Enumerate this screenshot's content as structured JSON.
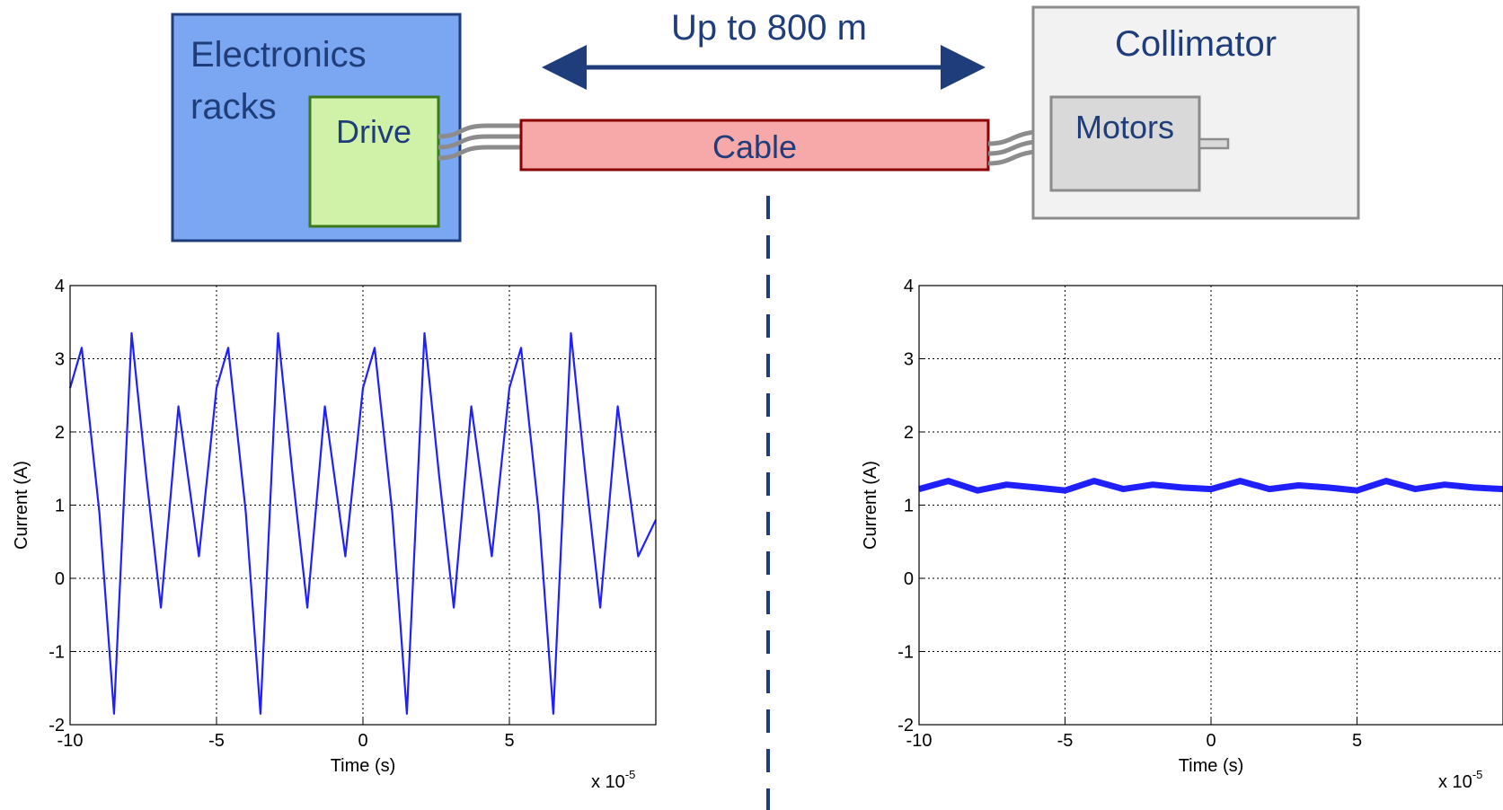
{
  "diagram": {
    "electronics_label_line1": "Electronics",
    "electronics_label_line2": "racks",
    "drive_label": "Drive",
    "cable_label": "Cable",
    "distance_label": "Up to 800 m",
    "collimator_label": "Collimator",
    "motors_label": "Motors",
    "colors": {
      "electronics_fill": "#7aa6f2",
      "electronics_border": "#1f3d7a",
      "drive_fill": "#cff2a8",
      "drive_border": "#3b7a1a",
      "cable_fill": "#f7a8a8",
      "cable_border": "#8b0000",
      "collimator_fill": "#f2f2f2",
      "motors_fill": "#d9d9d9",
      "gray_border": "#8c8c8c",
      "arrow": "#1f3d7a",
      "plot_line": "#1f1fff"
    }
  },
  "chart_data": [
    {
      "type": "line",
      "xlabel": "Time (s)",
      "ylabel": "Current (A)",
      "x_exponent_label": "x 10",
      "x_exponent": "-5",
      "xlim": [
        -10,
        10
      ],
      "ylim": [
        -2,
        4
      ],
      "xticks": [
        -10,
        -5,
        0,
        5
      ],
      "yticks": [
        -2,
        -1,
        0,
        1,
        2,
        3,
        4
      ],
      "xtick_labels": [
        "-10",
        "-5",
        "0",
        "5"
      ],
      "ytick_labels": [
        "-2",
        "-1",
        "0",
        "1",
        "2",
        "3",
        "4"
      ],
      "grid": true,
      "series": [
        {
          "x": [
            -10.0,
            -9.6,
            -9.0,
            -8.5,
            -7.9,
            -7.4,
            -6.9,
            -6.3,
            -5.6,
            -5.0,
            -4.6,
            -4.0,
            -3.5,
            -2.9,
            -2.4,
            -1.9,
            -1.3,
            -0.6,
            0.0,
            0.4,
            1.0,
            1.5,
            2.1,
            2.6,
            3.1,
            3.7,
            4.4,
            5.0,
            5.4,
            6.0,
            6.5,
            7.1,
            7.6,
            8.1,
            8.7,
            9.4,
            10.0
          ],
          "y": [
            2.6,
            3.15,
            0.9,
            -1.85,
            3.35,
            1.4,
            -0.4,
            2.35,
            0.3,
            2.6,
            3.15,
            0.9,
            -1.85,
            3.35,
            1.4,
            -0.4,
            2.35,
            0.3,
            2.6,
            3.15,
            0.9,
            -1.85,
            3.35,
            1.4,
            -0.4,
            2.35,
            0.3,
            2.6,
            3.15,
            0.9,
            -1.85,
            3.35,
            1.4,
            -0.4,
            2.35,
            0.3,
            0.8
          ]
        }
      ]
    },
    {
      "type": "line",
      "xlabel": "Time (s)",
      "ylabel": "Current (A)",
      "x_exponent_label": "x 10",
      "x_exponent": "-5",
      "xlim": [
        -10,
        10
      ],
      "ylim": [
        -2,
        4
      ],
      "xticks": [
        -10,
        -5,
        0,
        5
      ],
      "yticks": [
        -2,
        -1,
        0,
        1,
        2,
        3,
        4
      ],
      "xtick_labels": [
        "-10",
        "-5",
        "0",
        "5"
      ],
      "ytick_labels": [
        "-2",
        "-1",
        "0",
        "1",
        "2",
        "3",
        "4"
      ],
      "grid": true,
      "series": [
        {
          "x": [
            -10.0,
            -9.0,
            -8.0,
            -7.0,
            -6.0,
            -5.0,
            -4.0,
            -3.0,
            -2.0,
            -1.0,
            0.0,
            1.0,
            2.0,
            3.0,
            4.0,
            5.0,
            6.0,
            7.0,
            8.0,
            9.0,
            10.0
          ],
          "y": [
            1.22,
            1.33,
            1.2,
            1.28,
            1.24,
            1.2,
            1.33,
            1.22,
            1.28,
            1.24,
            1.22,
            1.33,
            1.22,
            1.27,
            1.24,
            1.2,
            1.33,
            1.22,
            1.28,
            1.24,
            1.22
          ]
        }
      ]
    }
  ]
}
